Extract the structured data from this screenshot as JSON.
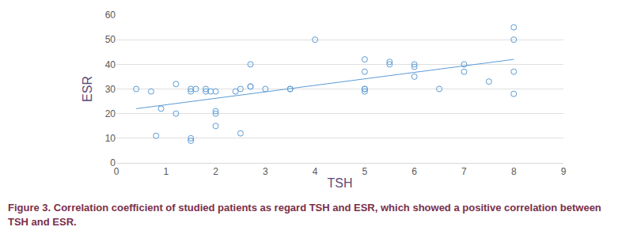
{
  "chart_data": {
    "type": "scatter",
    "caption": "Figure 3. Correlation coefficient of studied patients as regard TSH and ESR, which showed a positive correlation between TSH and ESR.",
    "x_label": "TSH",
    "y_label": "ESR",
    "x": [
      0.4,
      0.7,
      0.8,
      0.9,
      1.2,
      1.2,
      1.5,
      1.5,
      1.5,
      1.5,
      1.6,
      1.8,
      1.8,
      1.9,
      2,
      2,
      2,
      2,
      2.4,
      2.5,
      2.5,
      2.7,
      2.7,
      2.7,
      3,
      3.5,
      3.5,
      4,
      5,
      5,
      5,
      5,
      5,
      5.5,
      5.5,
      6,
      6,
      6,
      6.5,
      7,
      7,
      7.5,
      8,
      8,
      8,
      8
    ],
    "values": [
      30,
      29,
      11,
      22,
      32,
      20,
      30,
      29,
      10,
      9,
      30,
      30,
      29,
      29,
      29,
      21,
      20,
      15,
      29,
      30,
      12,
      40,
      31,
      31,
      30,
      30,
      30,
      50,
      42,
      37,
      30,
      30,
      29,
      41,
      40,
      40,
      39,
      35,
      30,
      40,
      37,
      33,
      55,
      50,
      37,
      28
    ],
    "color": "#5b9bd5",
    "marker": "circle-open",
    "trendline": {
      "x": [
        0.4,
        8
      ],
      "values": [
        22,
        42
      ],
      "line_style": "solid"
    },
    "xlim": [
      0,
      9
    ],
    "xticks": [
      0,
      1,
      2,
      3,
      4,
      5,
      6,
      7,
      8,
      9
    ],
    "ylim": [
      0,
      60
    ],
    "yticks": [
      0,
      10,
      20,
      30,
      40,
      50,
      60
    ],
    "grid": true
  }
}
